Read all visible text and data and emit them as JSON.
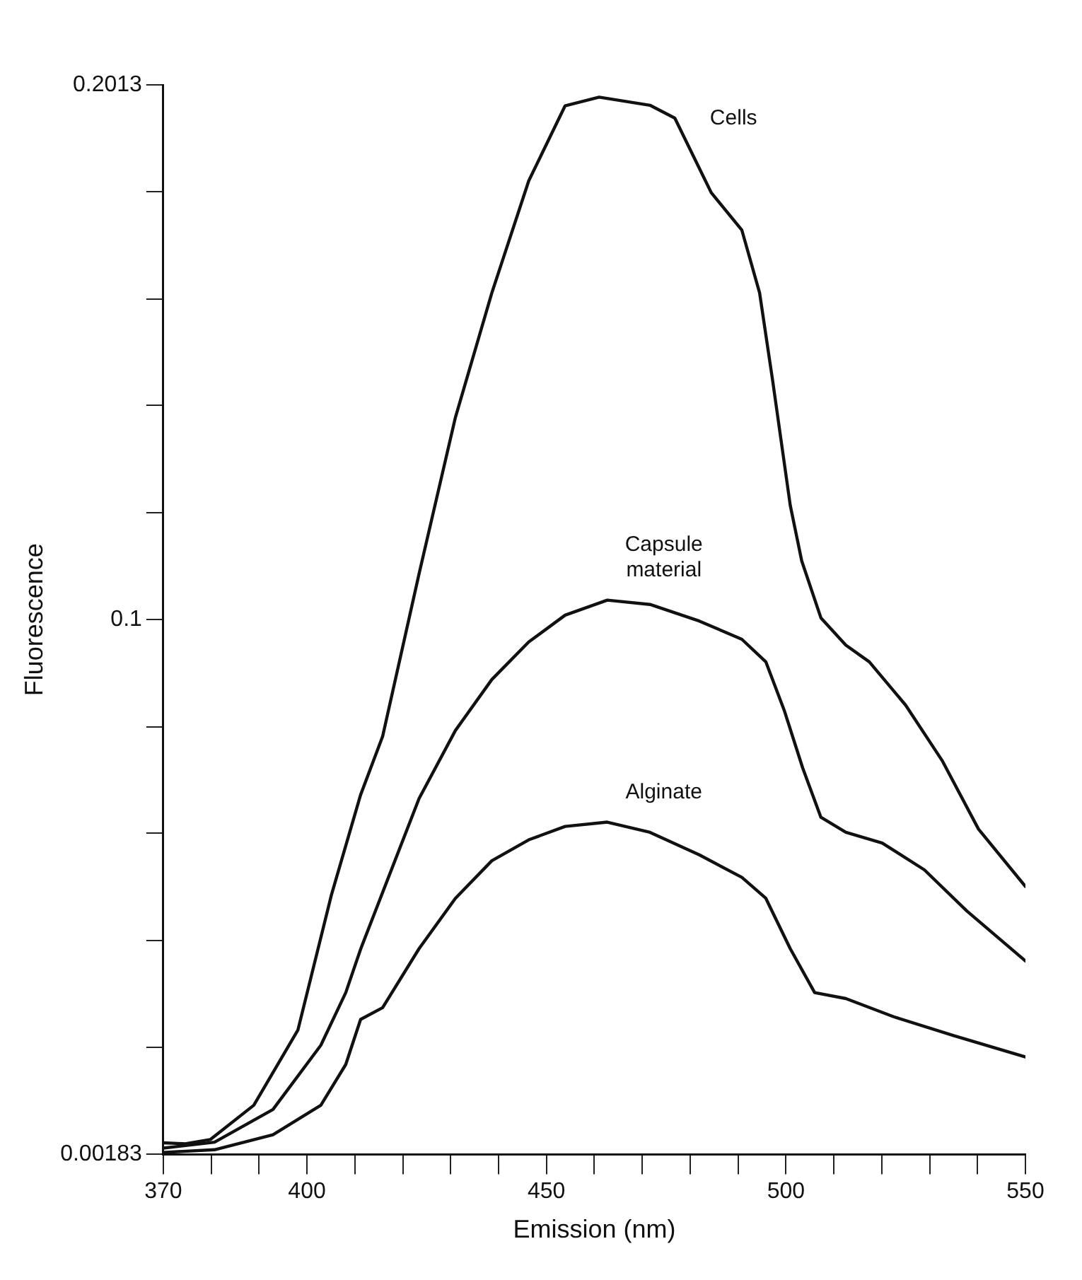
{
  "chart_data": {
    "type": "line",
    "xlabel": "Emission (nm)",
    "ylabel": "Fluorescence",
    "xlim": [
      370,
      550
    ],
    "ylim": [
      0.00183,
      0.2013
    ],
    "xticks": [
      370,
      {
        "value": 380,
        "label": null
      },
      {
        "value": 390,
        "label": null
      },
      400,
      {
        "value": 410,
        "label": null
      },
      {
        "value": 420,
        "label": null
      },
      {
        "value": 430,
        "label": null
      },
      {
        "value": 440,
        "label": null
      },
      450,
      {
        "value": 460,
        "label": null
      },
      {
        "value": 470,
        "label": null
      },
      {
        "value": 480,
        "label": null
      },
      {
        "value": 490,
        "label": null
      },
      500,
      {
        "value": 510,
        "label": null
      },
      {
        "value": 520,
        "label": null
      },
      {
        "value": 530,
        "label": null
      },
      {
        "value": 540,
        "label": null
      },
      550
    ],
    "yticks": [
      0.00183,
      {
        "value": 0.0218,
        "label": null
      },
      {
        "value": 0.0417,
        "label": null
      },
      {
        "value": 0.0617,
        "label": null
      },
      {
        "value": 0.0816,
        "label": null
      },
      {
        "value": 0.1016,
        "label": "0.1"
      },
      {
        "value": 0.1215,
        "label": null
      },
      {
        "value": 0.1415,
        "label": null
      },
      {
        "value": 0.1614,
        "label": null
      },
      {
        "value": 0.1814,
        "label": null
      },
      0.2013
    ],
    "grid": false,
    "legend": false,
    "marker": "none",
    "line_style": "solid",
    "series": [
      {
        "name": "Cells",
        "color": "#111111",
        "x": [
          370,
          374.6,
          379.8,
          388.9,
          398.1,
          405.1,
          411.2,
          415.8,
          423.4,
          431.0,
          438.6,
          446.3,
          453.9,
          461,
          471.6,
          476.8,
          484.4,
          490.8,
          494.5,
          497.2,
          500.9,
          503.3,
          507.3,
          512.5,
          517.4,
          525.0,
          532.6,
          540.2,
          550
        ],
        "values": [
          0.004,
          0.0038,
          0.0046,
          0.011,
          0.025,
          0.0502,
          0.0689,
          0.0798,
          0.1101,
          0.1393,
          0.1625,
          0.1834,
          0.1974,
          0.199,
          0.1975,
          0.1951,
          0.1812,
          0.1742,
          0.1625,
          0.1463,
          0.1229,
          0.1125,
          0.1019,
          0.0968,
          0.0937,
          0.0856,
          0.0753,
          0.0625,
          0.0518
        ]
      },
      {
        "name": "Capsule\nmaterial",
        "color": "#111111",
        "x": [
          370,
          380.7,
          392.9,
          402.9,
          408.1,
          411.2,
          415.8,
          423.4,
          431.0,
          438.6,
          446.3,
          453.9,
          462.7,
          471.6,
          481.9,
          490.8,
          495.8,
          499.7,
          503.5,
          507.3,
          512.5,
          520.1,
          528.9,
          537.8,
          550
        ],
        "values": [
          0.003,
          0.0041,
          0.0102,
          0.0222,
          0.032,
          0.0401,
          0.0507,
          0.0682,
          0.0809,
          0.0904,
          0.0974,
          0.1024,
          0.1052,
          0.1044,
          0.1013,
          0.0979,
          0.0937,
          0.0845,
          0.0739,
          0.0647,
          0.0619,
          0.0599,
          0.0549,
          0.0472,
          0.0379
        ]
      },
      {
        "name": "Alginate",
        "color": "#111111",
        "x": [
          370,
          380.7,
          392.9,
          402.9,
          408.1,
          411.2,
          415.8,
          423.4,
          431.0,
          438.6,
          446.3,
          453.9,
          462.7,
          471.6,
          481.9,
          490.8,
          495.8,
          500.9,
          506.0,
          512.5,
          522.5,
          535,
          550
        ],
        "values": [
          0.0022,
          0.0027,
          0.0055,
          0.011,
          0.0186,
          0.027,
          0.0292,
          0.0402,
          0.0496,
          0.0566,
          0.0605,
          0.063,
          0.0638,
          0.0619,
          0.0577,
          0.0535,
          0.0496,
          0.0402,
          0.032,
          0.0309,
          0.0275,
          0.024,
          0.02
        ]
      }
    ]
  }
}
